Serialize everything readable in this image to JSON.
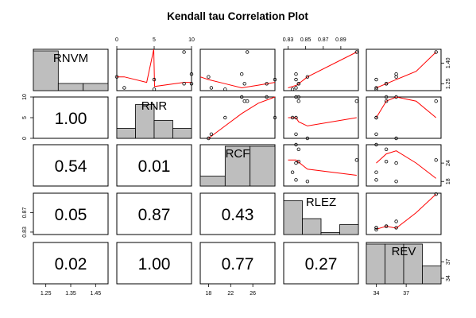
{
  "chart_data": {
    "type": "scatter",
    "title": "Kendall tau Correlation Plot",
    "variables": [
      "RNVM",
      "RNR",
      "RCF",
      "RLEZ",
      "REV"
    ],
    "scatter_point_color": "#000000",
    "smoother_color": "#ff0000",
    "histogram_color": "#bebebe",
    "ranges": {
      "RNVM": [
        1.2,
        1.5
      ],
      "RNR": [
        0,
        10
      ],
      "RCF": [
        16.5,
        30
      ],
      "RLEZ": [
        0.825,
        0.91
      ],
      "REV": [
        33,
        40.5
      ]
    },
    "axis_ticks": {
      "RNVM": {
        "values": [
          1.25,
          1.35,
          1.45
        ],
        "labels": [
          "1.25",
          "1.35",
          "1.45"
        ],
        "side": "bottom"
      },
      "RNR": {
        "values": [
          0,
          5,
          10
        ],
        "labels": [
          "0",
          "5",
          "10"
        ],
        "side": "top-left"
      },
      "RCF": {
        "values": [
          18,
          22,
          26
        ],
        "labels": [
          "18",
          "22",
          "26"
        ],
        "side": "bottom-right"
      },
      "RLEZ": {
        "values": [
          0.83,
          0.85,
          0.87,
          0.89
        ],
        "labels": [
          "0.83",
          "0.85",
          "0.87",
          "0.89"
        ],
        "side": "top-left"
      },
      "REV": {
        "values": [
          34,
          37
        ],
        "labels": [
          "34",
          "37"
        ],
        "side": "bottom-right"
      },
      "RNVM_right": {
        "values": [
          1.25,
          1.4
        ],
        "labels": [
          "1.25",
          "1.40"
        ]
      },
      "RLEZ_left": {
        "values": [
          0.83,
          0.87
        ],
        "labels": [
          "0.83",
          "0.87"
        ]
      },
      "RNR_left": {
        "values": [
          0,
          5,
          10
        ],
        "labels": [
          "0",
          "5",
          "10"
        ]
      },
      "RCF_right": {
        "values": [
          18,
          24
        ],
        "labels": [
          "18",
          "24"
        ]
      }
    },
    "correlations": [
      {
        "row": "RNR",
        "col": "RNVM",
        "label": "1.00"
      },
      {
        "row": "RCF",
        "col": "RNVM",
        "label": "0.54"
      },
      {
        "row": "RCF",
        "col": "RNR",
        "label": "0.01"
      },
      {
        "row": "RLEZ",
        "col": "RNVM",
        "label": "0.05"
      },
      {
        "row": "RLEZ",
        "col": "RNR",
        "label": "0.87"
      },
      {
        "row": "RLEZ",
        "col": "RCF",
        "label": "0.43"
      },
      {
        "row": "REV",
        "col": "RNVM",
        "label": "0.02"
      },
      {
        "row": "REV",
        "col": "RNR",
        "label": "1.00"
      },
      {
        "row": "REV",
        "col": "RCF",
        "label": "0.77"
      },
      {
        "row": "REV",
        "col": "RLEZ",
        "label": "0.27"
      }
    ],
    "histograms": {
      "RNVM": [
        1.0,
        0.18,
        0.18
      ],
      "RNR": [
        0.25,
        0.85,
        0.45,
        0.25
      ],
      "RCF": [
        0.25,
        1.0,
        1.0
      ],
      "RLEZ": [
        0.85,
        0.4,
        0.05,
        0.25
      ],
      "REV": [
        1.0,
        1.0,
        1.0,
        0.45
      ]
    },
    "observations": {
      "RNVM": [
        1.28,
        1.21,
        1.22,
        1.25,
        1.25,
        1.3,
        1.48,
        1.32
      ],
      "RNR": [
        5,
        5,
        1,
        9,
        10,
        0,
        9,
        10
      ],
      "RCF": [
        30,
        21,
        18.5,
        24.5,
        28.5,
        18,
        25,
        24
      ],
      "RLEZ": [
        0.839,
        0.835,
        0.839,
        0.842,
        0.842,
        0.852,
        0.908,
        0.839
      ],
      "REV": [
        34,
        34,
        34,
        35,
        35,
        36,
        40,
        36
      ]
    },
    "smoothers": {
      "RNVM_vs_RNR": [
        [
          0,
          1.3
        ],
        [
          1,
          1.3
        ],
        [
          4,
          1.26
        ],
        [
          4.95,
          1.5
        ],
        [
          5.05,
          1.23
        ],
        [
          9,
          1.26
        ],
        [
          10,
          1.26
        ]
      ],
      "RNVM_vs_RCF": [
        [
          16.5,
          1.3
        ],
        [
          18,
          1.28
        ],
        [
          21,
          1.25
        ],
        [
          24,
          1.22
        ],
        [
          27,
          1.24
        ],
        [
          30,
          1.26
        ]
      ],
      "RNVM_vs_RLEZ": [
        [
          0.83,
          1.22
        ],
        [
          0.84,
          1.24
        ],
        [
          0.852,
          1.3
        ],
        [
          0.908,
          1.48
        ]
      ],
      "RNVM_vs_REV": [
        [
          34,
          1.22
        ],
        [
          35,
          1.25
        ],
        [
          36,
          1.28
        ],
        [
          38,
          1.34
        ],
        [
          40,
          1.48
        ]
      ],
      "RNR_vs_RCF": [
        [
          18,
          0
        ],
        [
          21,
          3
        ],
        [
          24,
          6
        ],
        [
          27,
          8.5
        ],
        [
          30,
          10
        ]
      ],
      "RNR_vs_RLEZ": [
        [
          0.83,
          5
        ],
        [
          0.839,
          5
        ],
        [
          0.842,
          4
        ],
        [
          0.852,
          3
        ],
        [
          0.908,
          5
        ]
      ],
      "RNR_vs_REV": [
        [
          34,
          5
        ],
        [
          35,
          9
        ],
        [
          36,
          10
        ],
        [
          38,
          9
        ],
        [
          40,
          5
        ]
      ],
      "RCF_vs_RLEZ": [
        [
          0.83,
          25
        ],
        [
          0.839,
          25
        ],
        [
          0.852,
          22
        ],
        [
          0.908,
          20
        ]
      ],
      "RCF_vs_REV": [
        [
          34,
          24
        ],
        [
          35,
          27
        ],
        [
          36,
          28
        ],
        [
          38,
          24
        ],
        [
          40,
          19
        ]
      ],
      "RLEZ_vs_REV": [
        [
          34,
          0.836
        ],
        [
          35,
          0.842
        ],
        [
          36,
          0.838
        ],
        [
          38,
          0.87
        ],
        [
          40,
          0.908
        ]
      ]
    }
  }
}
